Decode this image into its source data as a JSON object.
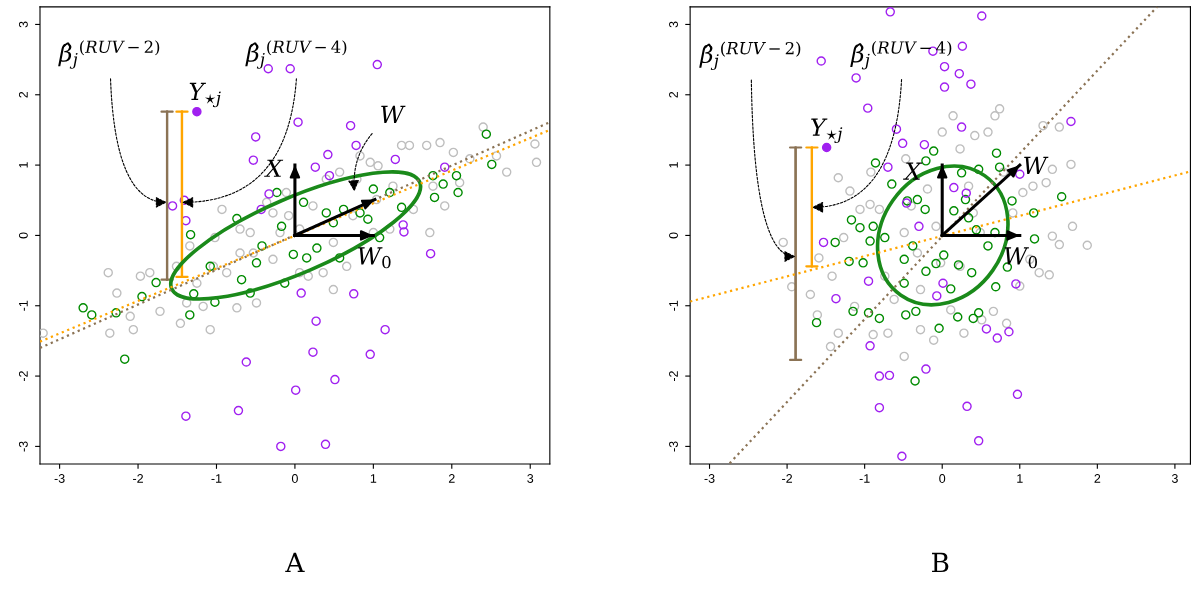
{
  "chart_data": [
    {
      "type": "scatter",
      "xlabel": "A",
      "xlim": [
        -3.25,
        3.25
      ],
      "ylim": [
        -3.25,
        3.25
      ],
      "xticks": [
        -3,
        -2,
        -1,
        0,
        1,
        2,
        3
      ],
      "yticks": [
        -3,
        -2,
        -1,
        0,
        1,
        2,
        3
      ],
      "series": [
        {
          "color": "#bebebe",
          "marker": "circle",
          "x": [
            -3.21,
            -2.38,
            -2.27,
            -2.06,
            -1.97,
            -1.85,
            -2.1,
            -2.36,
            -1.72,
            -1.51,
            -1.46,
            -1.38,
            -1.34,
            -1.08,
            -1.02,
            -0.93,
            -1.17,
            -0.74,
            -0.87,
            -0.7,
            -0.57,
            -0.49,
            -0.36,
            -0.28,
            -0.11,
            -0.08,
            -0.19,
            0.06,
            0.17,
            0.36,
            0.4,
            0.49,
            0.57,
            0.66,
            0.74,
            0.83,
            0.96,
            1.0,
            1.04,
            1.21,
            1.36,
            1.46,
            1.51,
            1.68,
            1.72,
            1.76,
            1.85,
            1.91,
            2.02,
            2.1,
            2.23,
            2.4,
            2.57,
            2.7,
            3.06,
            3.08,
            1.06,
            0.79,
            0.23,
            0.06,
            -0.28,
            -0.7,
            -1.04,
            -1.25,
            -0.53,
            0.49,
            1.25
          ],
          "values": [
            -1.39,
            -0.53,
            -0.82,
            -1.34,
            -0.58,
            -0.53,
            -1.15,
            -1.39,
            -1.08,
            -0.44,
            -1.25,
            -0.96,
            -0.15,
            -1.34,
            -0.03,
            0.37,
            -1.01,
            -1.03,
            -0.53,
            -0.25,
            0.04,
            -0.96,
            0.47,
            -0.34,
            0.61,
            0.28,
            0.04,
            -0.53,
            -0.58,
            -0.53,
            0.8,
            -0.77,
            0.9,
            -0.44,
            0.28,
            1.13,
            1.04,
            0.04,
            0.51,
            0.09,
            1.28,
            1.28,
            0.37,
            1.28,
            0.04,
            0.7,
            1.32,
            0.42,
            1.18,
            0.75,
            1.09,
            1.54,
            1.13,
            0.9,
            1.3,
            1.04,
            0.99,
            0.8,
            0.42,
            0.09,
            0.32,
            0.09,
            -0.44,
            -0.68,
            -0.25,
            -0.1,
            0.7
          ]
        },
        {
          "color": "#008b00",
          "marker": "circle",
          "x": [
            -2.7,
            -2.59,
            -2.28,
            -2.17,
            -1.95,
            -1.77,
            -1.34,
            -1.33,
            -1.29,
            -1.08,
            -1.02,
            -0.74,
            -0.68,
            -0.57,
            -0.49,
            -0.42,
            -0.23,
            -0.17,
            -0.13,
            -0.02,
            0.11,
            0.15,
            0.28,
            0.4,
            0.49,
            0.57,
            0.62,
            0.83,
            0.93,
            1.0,
            1.08,
            1.21,
            1.36,
            1.76,
            1.78,
            1.89,
            2.06,
            2.08,
            2.44,
            2.51
          ],
          "values": [
            -1.03,
            -1.13,
            -1.1,
            -1.76,
            -0.87,
            -0.67,
            -1.13,
            0.01,
            -0.83,
            -0.44,
            -0.95,
            0.24,
            -0.63,
            -0.82,
            -0.39,
            -0.15,
            0.61,
            0.13,
            -0.68,
            -0.27,
            0.47,
            -0.32,
            -0.18,
            0.32,
            0.18,
            -0.32,
            0.37,
            0.32,
            0.23,
            0.66,
            -0.03,
            0.61,
            0.4,
            0.85,
            0.54,
            0.73,
            0.85,
            0.61,
            1.44,
            1.01
          ]
        },
        {
          "color": "#a020f0",
          "marker": "circle",
          "x": [
            -1.56,
            -1.41,
            -1.39,
            -1.39,
            -0.72,
            -0.62,
            -0.53,
            -0.5,
            -0.43,
            -0.34,
            -0.33,
            -0.18,
            -0.06,
            0.01,
            0.04,
            0.08,
            0.23,
            0.26,
            0.27,
            0.39,
            0.42,
            0.44,
            0.51,
            0.71,
            0.75,
            0.78,
            0.96,
            1.05,
            1.15,
            1.28,
            1.38,
            1.39,
            1.73,
            1.91
          ],
          "values": [
            0.42,
            0.5,
            0.21,
            -2.57,
            -2.49,
            -1.8,
            1.07,
            1.4,
            0.37,
            2.37,
            0.59,
            -3.0,
            2.37,
            -2.2,
            1.61,
            -0.82,
            -1.66,
            0.97,
            -1.22,
            -2.97,
            1.15,
            0.85,
            -2.05,
            1.56,
            -0.83,
            1.28,
            -1.69,
            2.43,
            -1.34,
            1.08,
            0.15,
            0.05,
            -0.26,
            0.97
          ]
        },
        {
          "type": "line",
          "color": "#8b7355",
          "line_style": "dotted",
          "x": [
            -3.25,
            3.25
          ],
          "values": [
            -1.6,
            1.61
          ]
        },
        {
          "type": "line",
          "color": "#ffa500",
          "line_style": "dotted",
          "x": [
            -3.25,
            3.25
          ],
          "values": [
            -1.51,
            1.5
          ]
        },
        {
          "type": "line",
          "color": "#8b7355",
          "line_style": "solid",
          "x": [
            -1.63,
            -1.63
          ],
          "values": [
            -0.63,
            1.76
          ]
        },
        {
          "type": "line",
          "color": "#ffa500",
          "line_style": "solid",
          "x": [
            -1.44,
            -1.44
          ],
          "values": [
            -0.59,
            1.76
          ]
        },
        {
          "color": "#a020f0",
          "marker": "circle",
          "x": [
            -1.25
          ],
          "values": [
            1.76
          ]
        },
        {
          "type": "line",
          "color": "#000000",
          "line_style": "solid",
          "x": [
            0,
            0
          ],
          "values": [
            0,
            1.0
          ]
        },
        {
          "type": "line",
          "color": "#000000",
          "line_style": "solid",
          "x": [
            0,
            1.02
          ],
          "values": [
            0,
            0.51
          ]
        },
        {
          "type": "line",
          "color": "#000000",
          "line_style": "solid",
          "x": [
            0,
            1.0
          ],
          "values": [
            0,
            0
          ]
        }
      ],
      "annotations": [
        {
          "text": "β̂$_{j}$$^{(RUV−2)}$",
          "x": -1.63,
          "y": 0.47
        },
        {
          "text": "β̂$_{j}$$^{(RUV−4)}$",
          "x": -1.44,
          "y": 0.47
        },
        {
          "text": "Y$_{⋆j}$",
          "x": -1.25,
          "y": 1.76
        },
        "W",
        {
          "text": "X",
          "x": 0,
          "y": 1.0
        },
        {
          "text": "W$_{0}$",
          "x": 1.0,
          "y": 0
        }
      ]
    },
    {
      "type": "scatter",
      "xlabel": "B",
      "xlim": [
        -3.25,
        3.2
      ],
      "ylim": [
        -3.25,
        3.25
      ],
      "xticks": [
        -3,
        -2,
        -1,
        0,
        1,
        2,
        3
      ],
      "yticks": [
        -3,
        -2,
        -1,
        0,
        1,
        2,
        3
      ],
      "series": [
        {
          "color": "#bebebe",
          "marker": "circle",
          "x": [
            -2.05,
            -1.94,
            -1.7,
            -1.61,
            -1.59,
            -1.44,
            -1.42,
            -1.34,
            -1.34,
            -1.27,
            -1.19,
            -1.13,
            -1.06,
            -0.93,
            -0.92,
            -0.89,
            -0.81,
            -0.74,
            -0.7,
            -0.62,
            -0.49,
            -0.47,
            -0.4,
            -0.32,
            -0.28,
            -0.19,
            -0.11,
            -0.08,
            -0.02,
            0.0,
            0.11,
            0.14,
            0.23,
            0.28,
            0.34,
            0.42,
            0.49,
            0.51,
            0.59,
            0.66,
            0.68,
            0.74,
            0.79,
            0.83,
            0.91,
            1.0,
            1.04,
            1.13,
            1.17,
            1.25,
            1.3,
            1.34,
            1.38,
            1.42,
            1.42,
            1.51,
            1.66,
            1.68,
            1.87,
            1.51,
            -0.28,
            0.23,
            -0.49,
            0.4
          ],
          "values": [
            -0.1,
            -0.73,
            -0.84,
            -1.13,
            -0.32,
            -1.58,
            -0.58,
            0.82,
            -1.39,
            -0.03,
            0.63,
            -1.01,
            0.37,
            0.44,
            0.9,
            -1.41,
            0.37,
            -0.58,
            -1.39,
            -0.91,
            -1.72,
            1.09,
            0.42,
            -0.25,
            -1.34,
            0.66,
            -1.49,
            0.13,
            -0.39,
            1.47,
            -1.06,
            1.7,
            1.23,
            -1.39,
            0.7,
            1.42,
            0.04,
            -1.2,
            1.47,
            -1.08,
            1.7,
            1.8,
            0.9,
            -1.25,
            0.32,
            -0.72,
            0.61,
            -0.34,
            0.7,
            -0.53,
            1.56,
            0.75,
            -0.56,
            -0.01,
            0.94,
            1.54,
            1.01,
            0.13,
            -0.14,
            -0.13,
            -0.77,
            -0.44,
            0.04,
            0.32
          ]
        },
        {
          "color": "#008b00",
          "marker": "circle",
          "x": [
            -1.62,
            -1.38,
            -1.2,
            -1.17,
            -1.15,
            -1.06,
            -1.02,
            -0.95,
            -0.93,
            -0.89,
            -0.86,
            -0.81,
            -0.74,
            -0.65,
            -0.49,
            -0.49,
            -0.47,
            -0.45,
            -0.38,
            -0.35,
            -0.34,
            -0.32,
            -0.22,
            -0.21,
            -0.21,
            -0.11,
            -0.08,
            -0.04,
            0.02,
            0.11,
            0.15,
            0.2,
            0.21,
            0.25,
            0.3,
            0.34,
            0.38,
            0.4,
            0.44,
            0.47,
            0.47,
            0.59,
            0.68,
            0.69,
            0.7,
            0.74,
            0.84,
            0.9,
            1.18,
            1.19,
            1.54
          ],
          "values": [
            -1.24,
            -0.1,
            -0.37,
            0.22,
            -1.08,
            0.11,
            -0.39,
            -1.1,
            -0.08,
            0.13,
            1.03,
            -1.18,
            -0.03,
            0.73,
            -0.34,
            -0.68,
            -1.13,
            0.49,
            -0.15,
            -2.07,
            -1.08,
            0.51,
            0.37,
            1.06,
            -0.51,
            1.2,
            -0.4,
            -1.32,
            -0.28,
            -0.76,
            0.35,
            -1.16,
            -0.42,
            0.89,
            0.51,
            0.25,
            -0.53,
            -1.18,
            0.08,
            0.94,
            -1.1,
            -0.15,
            0.04,
            -0.73,
            1.17,
            0.97,
            -0.45,
            0.49,
            0.32,
            -0.05,
            0.55
          ]
        },
        {
          "color": "#a020f0",
          "marker": "circle",
          "x": [
            -1.56,
            -1.53,
            -1.37,
            -1.11,
            -0.96,
            -0.95,
            -0.93,
            -0.81,
            -0.81,
            -0.7,
            -0.68,
            -0.67,
            -0.59,
            -0.51,
            -0.52,
            -0.46,
            -0.3,
            -0.23,
            -0.21,
            -0.12,
            -0.07,
            0.01,
            0.03,
            0.03,
            0.15,
            0.22,
            0.25,
            0.26,
            0.31,
            0.32,
            0.37,
            0.47,
            0.51,
            0.57,
            0.71,
            0.86,
            0.95,
            0.97,
            1.66,
            1.0
          ],
          "values": [
            2.48,
            -0.1,
            -0.9,
            2.24,
            1.81,
            -0.65,
            -1.57,
            -2.0,
            -2.45,
            0.97,
            -1.99,
            3.18,
            1.51,
            1.31,
            -3.14,
            0.46,
            0.13,
            1.29,
            -1.9,
            2.62,
            -0.86,
            -0.68,
            2.4,
            2.11,
            0.68,
            2.3,
            1.54,
            2.69,
            0.6,
            -2.43,
            2.15,
            -2.92,
            3.12,
            -1.33,
            -1.46,
            -1.37,
            -0.69,
            -2.26,
            1.62,
            0.87
          ]
        },
        {
          "type": "line",
          "color": "#8b7355",
          "line_style": "dotted",
          "x": [
            -2.74,
            2.77
          ],
          "values": [
            -3.24,
            3.25
          ]
        },
        {
          "type": "line",
          "color": "#ffa500",
          "line_style": "dotted",
          "x": [
            -3.25,
            3.2
          ],
          "values": [
            -0.94,
            0.91
          ]
        },
        {
          "type": "line",
          "color": "#8b7355",
          "line_style": "solid",
          "x": [
            -1.89,
            -1.89
          ],
          "values": [
            -1.77,
            1.25
          ]
        },
        {
          "type": "line",
          "color": "#ffa500",
          "line_style": "solid",
          "x": [
            -1.68,
            -1.68
          ],
          "values": [
            -0.44,
            1.25
          ]
        },
        {
          "color": "#a020f0",
          "marker": "circle",
          "x": [
            -1.49
          ],
          "values": [
            1.25
          ]
        },
        {
          "type": "line",
          "color": "#000000",
          "line_style": "solid",
          "x": [
            0,
            0
          ],
          "values": [
            0,
            1.0
          ]
        },
        {
          "type": "line",
          "color": "#000000",
          "line_style": "solid",
          "x": [
            0,
            1.0
          ],
          "values": [
            0,
            1.0
          ]
        },
        {
          "type": "line",
          "color": "#000000",
          "line_style": "solid",
          "x": [
            0,
            1.0
          ],
          "values": [
            0,
            0
          ]
        }
      ],
      "annotations": [
        {
          "text": "β̂$_{j}$$^{(RUV−2)}$",
          "x": -1.89,
          "y": -0.3
        },
        {
          "text": "β̂$_{j}$$^{(RUV−4)}$",
          "x": -1.68,
          "y": 0.4
        },
        {
          "text": "Y$_{⋆j}$",
          "x": -1.49,
          "y": 1.25
        },
        {
          "text": "W",
          "x": 1.0,
          "y": 1.0
        },
        {
          "text": "X",
          "x": 0,
          "y": 1.0
        },
        {
          "text": "W$_{0}$",
          "x": 1.0,
          "y": 0
        }
      ]
    }
  ]
}
